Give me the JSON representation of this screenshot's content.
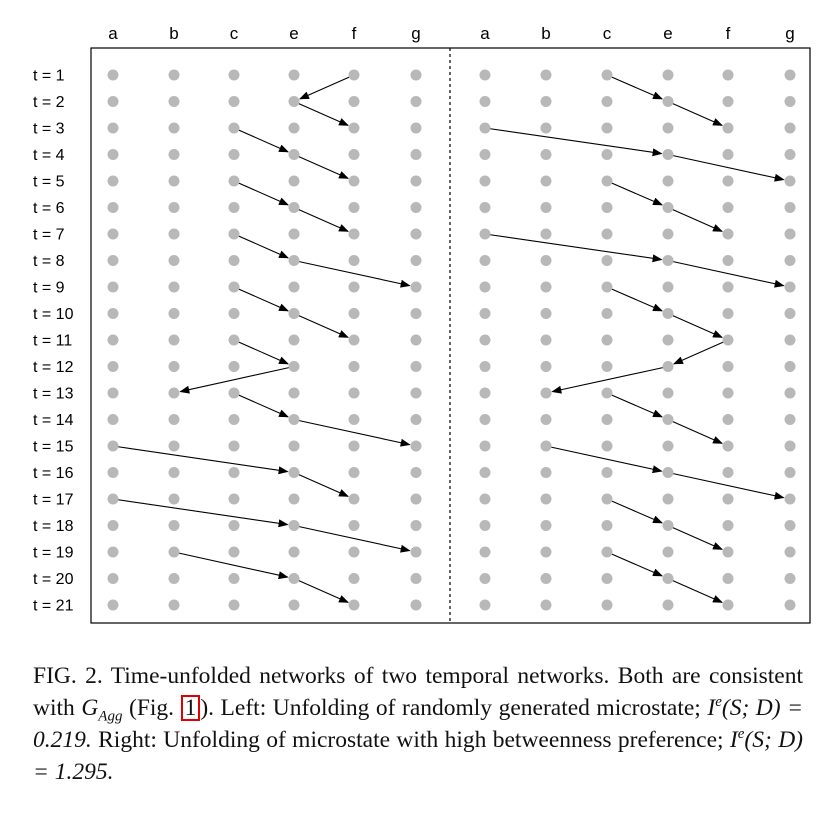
{
  "columns": [
    "a",
    "b",
    "c",
    "e",
    "f",
    "g"
  ],
  "time_labels": [
    "t = 1",
    "t = 2",
    "t = 3",
    "t = 4",
    "t = 5",
    "t = 6",
    "t = 7",
    "t = 8",
    "t = 9",
    "t = 10",
    "t = 11",
    "t = 12",
    "t = 13",
    "t = 14",
    "t = 15",
    "t = 16",
    "t = 17",
    "t = 18",
    "t = 19",
    "t = 20",
    "t = 21"
  ],
  "panels": {
    "left": {
      "edges": [
        {
          "t": 1,
          "from": "f",
          "to": "e"
        },
        {
          "t": 2,
          "from": "e",
          "to": "f"
        },
        {
          "t": 3,
          "from": "c",
          "to": "e"
        },
        {
          "t": 4,
          "from": "e",
          "to": "f"
        },
        {
          "t": 5,
          "from": "c",
          "to": "e"
        },
        {
          "t": 6,
          "from": "e",
          "to": "f"
        },
        {
          "t": 7,
          "from": "c",
          "to": "e"
        },
        {
          "t": 8,
          "from": "e",
          "to": "g"
        },
        {
          "t": 9,
          "from": "c",
          "to": "e"
        },
        {
          "t": 10,
          "from": "e",
          "to": "f"
        },
        {
          "t": 11,
          "from": "c",
          "to": "e"
        },
        {
          "t": 12,
          "from": "e",
          "to": "b"
        },
        {
          "t": 13,
          "from": "c",
          "to": "e"
        },
        {
          "t": 14,
          "from": "e",
          "to": "g"
        },
        {
          "t": 15,
          "from": "a",
          "to": "e"
        },
        {
          "t": 16,
          "from": "e",
          "to": "f"
        },
        {
          "t": 17,
          "from": "a",
          "to": "e"
        },
        {
          "t": 18,
          "from": "e",
          "to": "g"
        },
        {
          "t": 19,
          "from": "b",
          "to": "e"
        },
        {
          "t": 20,
          "from": "e",
          "to": "f"
        }
      ]
    },
    "right": {
      "edges": [
        {
          "t": 1,
          "from": "c",
          "to": "e"
        },
        {
          "t": 2,
          "from": "e",
          "to": "f"
        },
        {
          "t": 3,
          "from": "a",
          "to": "e"
        },
        {
          "t": 4,
          "from": "e",
          "to": "g"
        },
        {
          "t": 5,
          "from": "c",
          "to": "e"
        },
        {
          "t": 6,
          "from": "e",
          "to": "f"
        },
        {
          "t": 7,
          "from": "a",
          "to": "e"
        },
        {
          "t": 8,
          "from": "e",
          "to": "g"
        },
        {
          "t": 9,
          "from": "c",
          "to": "e"
        },
        {
          "t": 10,
          "from": "e",
          "to": "f"
        },
        {
          "t": 11,
          "from": "f",
          "to": "e"
        },
        {
          "t": 12,
          "from": "e",
          "to": "b"
        },
        {
          "t": 13,
          "from": "c",
          "to": "e"
        },
        {
          "t": 14,
          "from": "e",
          "to": "f"
        },
        {
          "t": 15,
          "from": "b",
          "to": "e"
        },
        {
          "t": 16,
          "from": "e",
          "to": "g"
        },
        {
          "t": 17,
          "from": "c",
          "to": "e"
        },
        {
          "t": 18,
          "from": "e",
          "to": "f"
        },
        {
          "t": 19,
          "from": "c",
          "to": "e"
        },
        {
          "t": 20,
          "from": "e",
          "to": "f"
        }
      ]
    }
  },
  "caption": {
    "prefix": "FIG. 2.  Time-unfolded networks of two temporal networks. Both are consistent with ",
    "g_symbol": "G",
    "g_subscript": "Agg",
    "fig_open": " (Fig. ",
    "fig_ref": "1",
    "fig_close": "). Left: Unfolding of randomly generated microstate; ",
    "left_metric": "I",
    "left_metric_sup": "e",
    "left_metric_args": "(S; D) = 0.219.",
    "right_text": "  Right: Unfolding of microstate with high betweenness preference; ",
    "right_metric": "I",
    "right_metric_sup": "e",
    "right_metric_args": "(S; D) = 1.295."
  },
  "colors": {
    "node": "#b8b8b8",
    "edge": "#000000",
    "frame": "#000000"
  }
}
